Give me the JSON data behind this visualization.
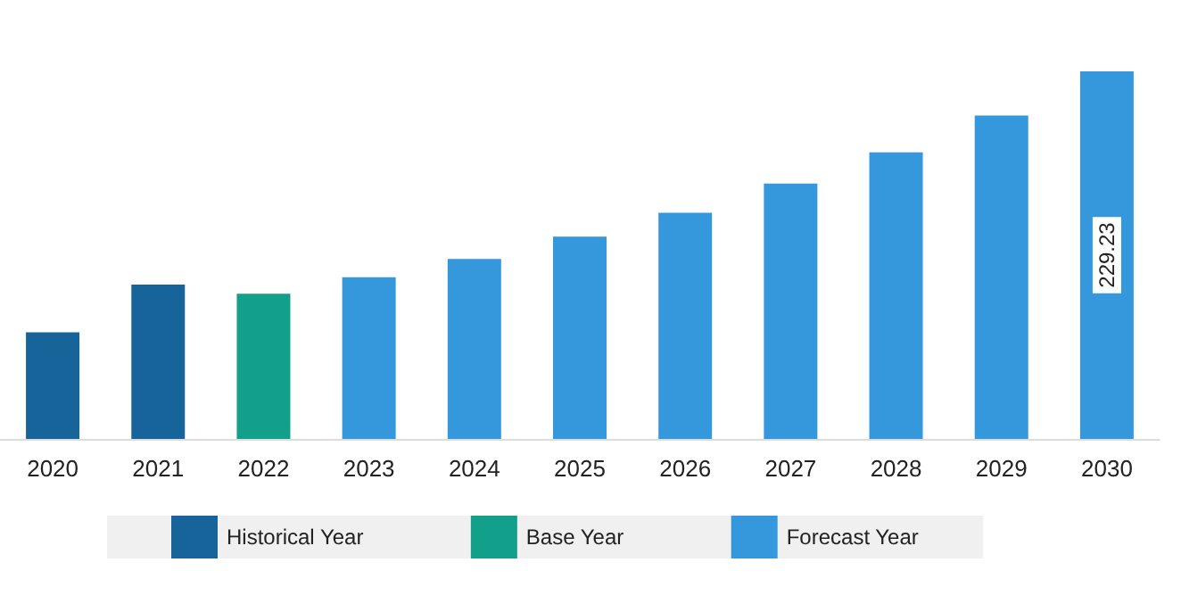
{
  "chart_data": {
    "type": "bar",
    "categories": [
      "2020",
      "2021",
      "2022",
      "2023",
      "2024",
      "2025",
      "2026",
      "2027",
      "2028",
      "2029",
      "2030"
    ],
    "stacked": true,
    "legend": "bottom",
    "tick_labels": "x",
    "series": [
      {
        "name": "Historical Year",
        "color": "#17649a",
        "values": [
          66.5,
          96.3,
          null,
          null,
          null,
          null,
          null,
          null,
          null,
          null,
          null
        ]
      },
      {
        "name": "Base Year",
        "color": "#13a08b",
        "values": [
          null,
          null,
          90.5,
          null,
          null,
          null,
          null,
          null,
          null,
          null,
          null
        ]
      },
      {
        "name": "Forecast Year",
        "color": "#3598dc",
        "values": [
          null,
          null,
          null,
          100.9,
          112.3,
          126.1,
          141.0,
          159.3,
          178.8,
          201.7,
          229.23
        ],
        "value_labels": [
          null,
          null,
          null,
          null,
          null,
          null,
          null,
          null,
          null,
          null,
          "229.23"
        ]
      }
    ]
  }
}
